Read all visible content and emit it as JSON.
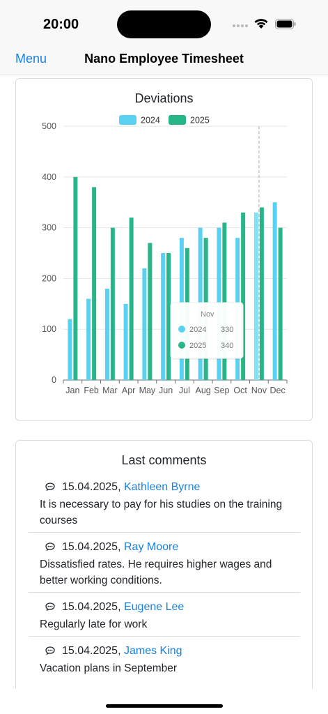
{
  "status_bar": {
    "time": "20:00"
  },
  "navbar": {
    "menu_label": "Menu",
    "title": "Nano Employee Timesheet"
  },
  "chart_card": {
    "title": "Deviations"
  },
  "chart_data": {
    "type": "bar",
    "title": "Deviations",
    "categories": [
      "Jan",
      "Feb",
      "Mar",
      "Apr",
      "May",
      "Jun",
      "Jul",
      "Aug",
      "Sep",
      "Oct",
      "Nov",
      "Dec"
    ],
    "series": [
      {
        "name": "2024",
        "color": "#5bd1f2",
        "values": [
          120,
          160,
          180,
          150,
          220,
          250,
          280,
          300,
          300,
          280,
          330,
          350
        ]
      },
      {
        "name": "2025",
        "color": "#27b589",
        "values": [
          400,
          380,
          300,
          320,
          270,
          250,
          260,
          280,
          310,
          330,
          340,
          300
        ]
      }
    ],
    "ylim": [
      0,
      500
    ],
    "yticks": [
      0,
      100,
      200,
      300,
      400,
      500
    ],
    "grid": true,
    "legend": "top-center",
    "tooltip": {
      "category": "Nov",
      "rows": [
        {
          "name": "2024",
          "value": 330
        },
        {
          "name": "2025",
          "value": 340
        }
      ]
    }
  },
  "comments_card": {
    "title": "Last comments",
    "items": [
      {
        "date": "15.04.2025,",
        "author": "Kathleen Byrne",
        "text": "It is necessary to pay for his studies on the training courses"
      },
      {
        "date": "15.04.2025,",
        "author": "Ray Moore",
        "text": "Dissatisfied rates. He requires higher wages and better working conditions."
      },
      {
        "date": "15.04.2025,",
        "author": "Eugene Lee",
        "text": "Regularly late for work"
      },
      {
        "date": "15.04.2025,",
        "author": "James King",
        "text": "Vacation plans in September"
      }
    ]
  }
}
